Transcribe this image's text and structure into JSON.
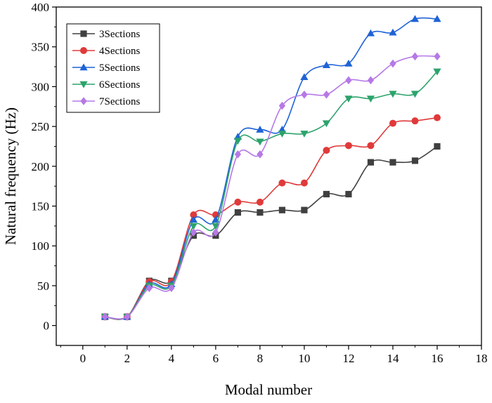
{
  "chart_data": {
    "type": "line",
    "title": "",
    "xlabel": "Modal number",
    "ylabel": "Natural frequency (Hz)",
    "xlim": [
      -1.2,
      18
    ],
    "ylim": [
      -25,
      400
    ],
    "xticks": [
      0,
      2,
      4,
      6,
      8,
      10,
      12,
      14,
      16,
      18
    ],
    "yticks": [
      0,
      50,
      100,
      150,
      200,
      250,
      300,
      350,
      400
    ],
    "grid": false,
    "legend_position": "top-left",
    "x": [
      1,
      2,
      3,
      4,
      5,
      6,
      7,
      8,
      9,
      10,
      11,
      12,
      13,
      14,
      15,
      16
    ],
    "series": [
      {
        "name": "3Sections",
        "color": "#404040",
        "marker": "square",
        "values": [
          11,
          11,
          56,
          56,
          113,
          113,
          142,
          142,
          145,
          145,
          165,
          165,
          205,
          205,
          207,
          225
        ]
      },
      {
        "name": "4Sections",
        "color": "#e03a3a",
        "marker": "circle",
        "values": [
          11,
          11,
          55,
          55,
          139,
          139,
          155,
          155,
          179,
          179,
          220,
          226,
          226,
          254,
          257,
          261
        ]
      },
      {
        "name": "5Sections",
        "color": "#1f63d6",
        "marker": "triangle-up",
        "values": [
          11,
          11,
          52,
          52,
          133,
          133,
          237,
          246,
          246,
          312,
          327,
          329,
          367,
          368,
          385,
          385
        ]
      },
      {
        "name": "6Sections",
        "color": "#2ca36b",
        "marker": "triangle-down",
        "values": [
          11,
          11,
          50,
          50,
          125,
          125,
          232,
          231,
          241,
          241,
          254,
          285,
          285,
          291,
          291,
          319
        ]
      },
      {
        "name": "7Sections",
        "color": "#b678e6",
        "marker": "diamond",
        "values": [
          11,
          11,
          47,
          47,
          117,
          117,
          215,
          215,
          276,
          290,
          290,
          308,
          308,
          329,
          338,
          338
        ]
      }
    ]
  }
}
